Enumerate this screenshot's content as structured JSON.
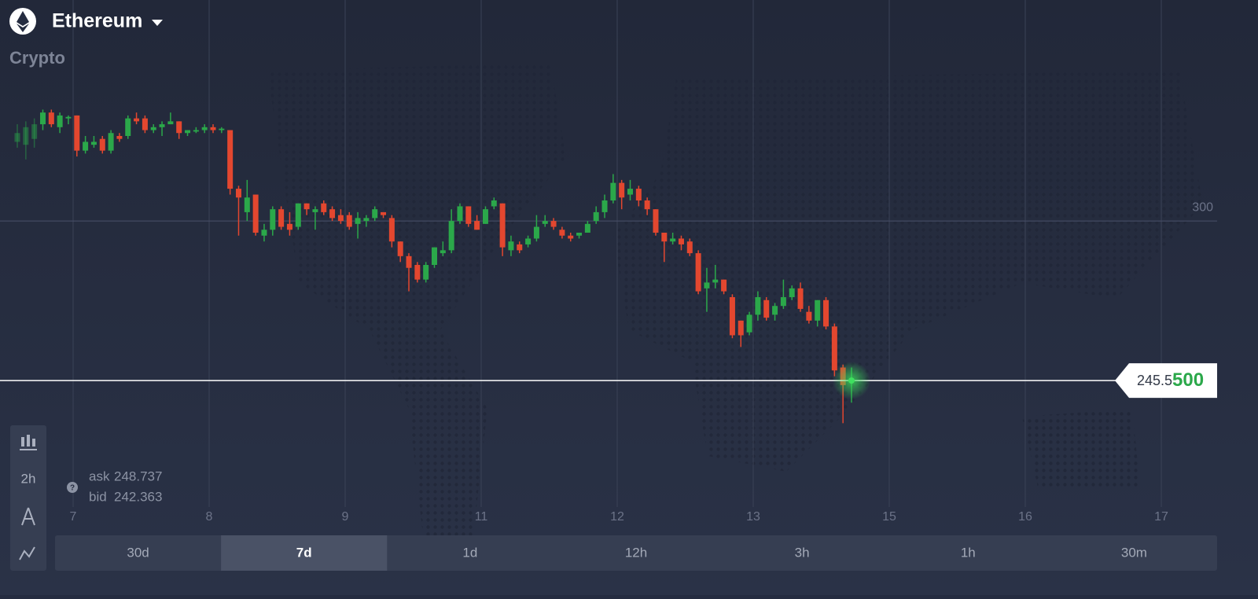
{
  "header": {
    "title": "Ethereum",
    "subtitle": "Crypto"
  },
  "toolbar": {
    "interval": "2h"
  },
  "quote": {
    "ask_label": "ask",
    "ask": "248.737",
    "bid_label": "bid",
    "bid": "242.363"
  },
  "price_label": {
    "main": "245.5",
    "tail": "500"
  },
  "periods": [
    {
      "label": "30d",
      "active": false
    },
    {
      "label": "7d",
      "active": true
    },
    {
      "label": "1d",
      "active": false
    },
    {
      "label": "12h",
      "active": false
    },
    {
      "label": "3h",
      "active": false
    },
    {
      "label": "1h",
      "active": false
    },
    {
      "label": "30m",
      "active": false
    }
  ],
  "chart_data": {
    "type": "candlestick",
    "xtick_labels": [
      "7",
      "8",
      "9",
      "11",
      "12",
      "13",
      "15",
      "16",
      "17"
    ],
    "ylim": [
      193,
      375.4
    ],
    "yticks": [
      300
    ],
    "current_price": 245.55,
    "up_color": "#2ba84a",
    "down_color": "#e3472f",
    "open": [
      327,
      326,
      328,
      333,
      337,
      332,
      335,
      336,
      324,
      326,
      328,
      324,
      329,
      329,
      335,
      335,
      331,
      332,
      333,
      334,
      330,
      330.5,
      331,
      332,
      331,
      331,
      311,
      303,
      309,
      295,
      297,
      304,
      299,
      298,
      306,
      303,
      306,
      304,
      302,
      302,
      299,
      300,
      301,
      303,
      301,
      293,
      288,
      285,
      280,
      285,
      289,
      290,
      300,
      305,
      300,
      299,
      305,
      306,
      290,
      292,
      292,
      294,
      299,
      300,
      297,
      295,
      295,
      296,
      300,
      303,
      307,
      313,
      309,
      311,
      307,
      304,
      296,
      293,
      294,
      293,
      289,
      277,
      279,
      280,
      274,
      266,
      262,
      268,
      273,
      268,
      271,
      274,
      277,
      269,
      266,
      273,
      264,
      250,
      245
    ],
    "high": [
      333,
      334,
      335,
      338,
      338,
      337,
      336,
      336,
      329,
      329,
      329,
      331,
      330,
      336,
      337,
      336,
      333,
      334,
      337,
      334,
      331,
      332,
      333,
      333,
      332,
      331,
      312,
      314,
      309,
      299,
      305,
      305,
      303,
      306,
      306,
      305,
      307,
      305,
      304,
      303,
      303,
      302,
      305,
      303,
      302,
      293,
      289,
      286,
      286,
      291,
      293,
      304,
      306,
      305,
      302,
      305,
      308,
      306,
      295,
      293,
      295,
      302,
      302,
      301,
      298,
      296,
      296,
      300,
      305,
      309,
      316,
      314,
      314,
      312,
      308,
      304,
      296,
      296,
      295,
      294,
      290,
      284,
      285,
      280,
      275,
      266,
      269,
      276,
      274,
      272,
      280,
      278,
      279,
      271,
      273,
      274,
      265,
      251,
      250
    ],
    "low": [
      325,
      321,
      325,
      331,
      332,
      330,
      333,
      322,
      323,
      325,
      323,
      323,
      327,
      328,
      333,
      330,
      330,
      329,
      333,
      328,
      329,
      330,
      330,
      330,
      330,
      309,
      295,
      300,
      295,
      293,
      295,
      297,
      295,
      297,
      302,
      297,
      302,
      300,
      299,
      297,
      294,
      298,
      300,
      301,
      291,
      286,
      276,
      279,
      279,
      284,
      288,
      289,
      299,
      298,
      297,
      299,
      304,
      288,
      288,
      289,
      291,
      293,
      298,
      297,
      294,
      293,
      294,
      296,
      299,
      301,
      306,
      304,
      307,
      305,
      302,
      295,
      286,
      292,
      290,
      288,
      275,
      269,
      277,
      275,
      260,
      257,
      261,
      266,
      266,
      266,
      270,
      273,
      269,
      265,
      264,
      263,
      247,
      231,
      238
    ],
    "close": [
      330,
      332,
      333,
      337,
      333,
      336,
      335.5,
      324,
      327,
      327,
      324,
      330,
      328,
      335,
      334,
      331,
      332,
      333,
      334,
      330,
      331,
      331,
      332,
      331,
      331.5,
      311,
      308,
      308,
      296,
      297,
      304,
      298,
      297,
      306,
      304,
      304,
      303,
      301,
      300,
      298,
      301,
      301,
      304,
      302,
      293,
      288,
      284,
      280,
      285,
      291,
      290,
      300,
      305,
      299,
      297,
      304,
      307,
      291,
      293,
      290,
      294,
      298,
      300,
      298,
      295,
      294,
      296,
      299,
      303,
      307,
      313,
      308,
      311,
      307,
      304,
      296,
      293,
      294,
      292,
      289,
      276,
      279,
      280,
      276,
      261,
      261,
      268,
      274,
      267,
      271,
      274,
      277,
      270,
      266,
      273,
      264,
      249,
      244,
      245.55
    ]
  }
}
